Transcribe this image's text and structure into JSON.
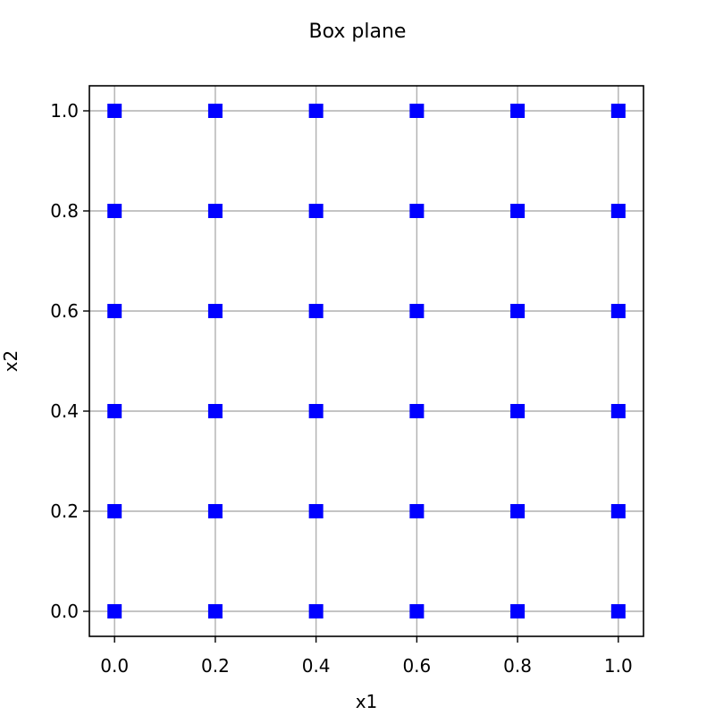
{
  "chart_data": {
    "type": "scatter",
    "title": "Box plane",
    "xlabel": "x1",
    "ylabel": "x2",
    "xlim": [
      -0.05,
      1.05
    ],
    "ylim": [
      -0.05,
      1.05
    ],
    "xticks": [
      0.0,
      0.2,
      0.4,
      0.6,
      0.8,
      1.0
    ],
    "xtick_labels": [
      "0.0",
      "0.2",
      "0.4",
      "0.6",
      "0.8",
      "1.0"
    ],
    "yticks": [
      0.0,
      0.2,
      0.4,
      0.6,
      0.8,
      1.0
    ],
    "ytick_labels": [
      "0.0",
      "0.2",
      "0.4",
      "0.6",
      "0.8",
      "1.0"
    ],
    "grid": true,
    "marker": "square",
    "series": [
      {
        "name": "points",
        "color": "#0000ff",
        "points": [
          [
            0.0,
            0.0
          ],
          [
            0.2,
            0.0
          ],
          [
            0.4,
            0.0
          ],
          [
            0.6,
            0.0
          ],
          [
            0.8,
            0.0
          ],
          [
            1.0,
            0.0
          ],
          [
            0.0,
            0.2
          ],
          [
            0.2,
            0.2
          ],
          [
            0.4,
            0.2
          ],
          [
            0.6,
            0.2
          ],
          [
            0.8,
            0.2
          ],
          [
            1.0,
            0.2
          ],
          [
            0.0,
            0.4
          ],
          [
            0.2,
            0.4
          ],
          [
            0.4,
            0.4
          ],
          [
            0.6,
            0.4
          ],
          [
            0.8,
            0.4
          ],
          [
            1.0,
            0.4
          ],
          [
            0.0,
            0.6
          ],
          [
            0.2,
            0.6
          ],
          [
            0.4,
            0.6
          ],
          [
            0.6,
            0.6
          ],
          [
            0.8,
            0.6
          ],
          [
            1.0,
            0.6
          ],
          [
            0.0,
            0.8
          ],
          [
            0.2,
            0.8
          ],
          [
            0.4,
            0.8
          ],
          [
            0.6,
            0.8
          ],
          [
            0.8,
            0.8
          ],
          [
            1.0,
            0.8
          ],
          [
            0.0,
            1.0
          ],
          [
            0.2,
            1.0
          ],
          [
            0.4,
            1.0
          ],
          [
            0.6,
            1.0
          ],
          [
            0.8,
            1.0
          ],
          [
            1.0,
            1.0
          ]
        ]
      }
    ],
    "grid_color": "#b0b0b0",
    "axis_color": "#000000"
  }
}
